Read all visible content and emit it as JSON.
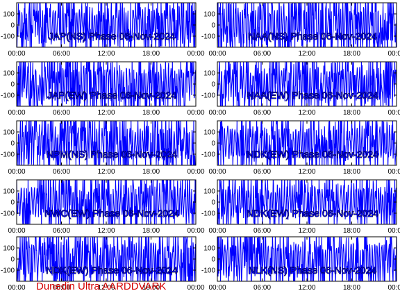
{
  "footer_text": "Dunedin Ultra AARDDVARK",
  "colors": {
    "trace": "#0000ff",
    "frame": "#000000",
    "background": "#ffffff",
    "footer": "#d40000"
  },
  "chart_data": [
    {
      "type": "line",
      "title": "JAP(NS) Phase 06-Nov-2024",
      "ylim": [
        -200,
        200
      ],
      "yticks": [
        100,
        0,
        -100
      ],
      "xticks": [
        "00:00",
        "06:00",
        "12:00",
        "18:00",
        "00:00"
      ],
      "grid": false,
      "seed": 11,
      "amplitude": 170,
      "density": 0.7
    },
    {
      "type": "line",
      "title": "JAP(EW) Phase 06-Nov-2024",
      "ylim": [
        -200,
        200
      ],
      "yticks": [
        100,
        0,
        -100
      ],
      "xticks": [
        "00:00",
        "06:00",
        "12:00",
        "18:00",
        "00:00"
      ],
      "grid": false,
      "seed": 23,
      "amplitude": 175,
      "density": 0.8
    },
    {
      "type": "line",
      "title": "NPM(NS) Phase 06-Nov-2024",
      "ylim": [
        -200,
        200
      ],
      "yticks": [
        100,
        0,
        -100
      ],
      "xticks": [
        "00:00",
        "06:00",
        "12:00",
        "18:00",
        "00:00"
      ],
      "grid": false,
      "seed": 37,
      "amplitude": 170,
      "density": 0.75
    },
    {
      "type": "line",
      "title": "NWC(EW) Phase 06-Nov-2024",
      "ylim": [
        -200,
        200
      ],
      "yticks": [
        100,
        0,
        -100
      ],
      "xticks": [
        "00:00",
        "06:00",
        "12:00",
        "18:00",
        "00:00"
      ],
      "grid": false,
      "seed": 41,
      "amplitude": 160,
      "density": 0.7
    },
    {
      "type": "line",
      "title": "NDK(EW) Phase 06-Nov-2024",
      "ylim": [
        -200,
        200
      ],
      "yticks": [
        100,
        0,
        -100
      ],
      "xticks": [
        "00:00",
        "06:00",
        "12:00",
        "18:00",
        "00:00"
      ],
      "grid": false,
      "seed": 53,
      "amplitude": 170,
      "density": 0.75
    },
    {
      "type": "line",
      "title": "NAA(NS) Phase 06-Nov-2024",
      "ylim": [
        -200,
        200
      ],
      "yticks": [
        100,
        0,
        -100
      ],
      "xticks": [
        "00:00",
        "06:00",
        "12:00",
        "18:00",
        "00:00"
      ],
      "grid": false,
      "seed": 67,
      "amplitude": 180,
      "density": 0.85
    },
    {
      "type": "line",
      "title": "NAA(EW) Phase 06-Nov-2024",
      "ylim": [
        -200,
        200
      ],
      "yticks": [
        100,
        0,
        -100
      ],
      "xticks": [
        "00:00",
        "06:00",
        "12:00",
        "18:00",
        "00:00"
      ],
      "grid": false,
      "seed": 71,
      "amplitude": 165,
      "density": 0.7
    },
    {
      "type": "line",
      "title": "NDK(EW) Phase 06-Nov-2024",
      "ylim": [
        -200,
        200
      ],
      "yticks": [
        100,
        0,
        -100
      ],
      "xticks": [
        "00:00",
        "06:00",
        "12:00",
        "18:00",
        "00:00"
      ],
      "grid": false,
      "seed": 83,
      "amplitude": 160,
      "density": 0.65
    },
    {
      "type": "line",
      "title": "NDK(EW) Phase 06-Nov-2024",
      "ylim": [
        -200,
        200
      ],
      "yticks": [
        100,
        0,
        -100
      ],
      "xticks": [
        "00:00",
        "06:00",
        "12:00",
        "18:00",
        "00:00"
      ],
      "grid": false,
      "seed": 97,
      "amplitude": 155,
      "density": 0.65
    },
    {
      "type": "line",
      "title": "NLK(NS) Phase 06-Nov-2024",
      "ylim": [
        -200,
        200
      ],
      "yticks": [
        100,
        0,
        -100
      ],
      "xticks": [
        "00:00",
        "06:00",
        "12:00",
        "18:00",
        "00:00"
      ],
      "grid": false,
      "seed": 101,
      "amplitude": 165,
      "density": 0.7
    }
  ]
}
